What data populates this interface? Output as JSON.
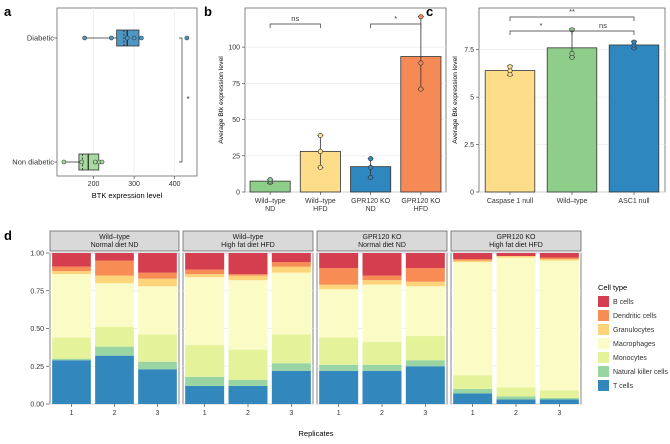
{
  "colors": {
    "diabetic_box": "#4e97c4",
    "nondiabetic_box": "#a7d9a1",
    "b_bar_wt_nd": "#8fce8a",
    "b_bar_wt_hfd": "#fddd8a",
    "b_bar_ko_nd": "#2f87c0",
    "b_bar_ko_hfd": "#f58a57",
    "c_bar_casp": "#fddd8a",
    "c_bar_wt": "#8fce8a",
    "c_bar_asc": "#2f87c0",
    "strip_bg": "#d9d9d9",
    "grid": "#ebebeb",
    "B cells": "#d53e4f",
    "Dendritic cells": "#f78c54",
    "Granulocytes": "#fed47a",
    "Macrophages": "#fbfbc5",
    "Monocytes": "#e4f29a",
    "Natural killer cells": "#99d4a3",
    "T cells": "#3288bd"
  },
  "chart_data": [
    {
      "panel": "a",
      "type": "box",
      "orientation": "horizontal",
      "categories": [
        "Diabetic",
        "Non diabetic"
      ],
      "xlabel": "BTK expression level",
      "ylabel": "",
      "xlim": [
        110,
        455
      ],
      "xticks": [
        200,
        300,
        400
      ],
      "boxes": [
        {
          "category": "Diabetic",
          "min": 178,
          "q1": 257,
          "median": 283,
          "mean": 275,
          "q3": 312,
          "max": 318,
          "outliers": [
            430
          ],
          "points": [
            178,
            244,
            283,
            300,
            318
          ]
        },
        {
          "category": "Non diabetic",
          "min": 127,
          "q1": 164,
          "median": 187,
          "mean": 173,
          "q3": 213,
          "max": 221,
          "outliers": [],
          "points": [
            127,
            171,
            204,
            214,
            221
          ]
        }
      ],
      "significance": [
        {
          "between": [
            "Diabetic",
            "Non diabetic"
          ],
          "label": "*"
        }
      ],
      "grid": true
    },
    {
      "panel": "b",
      "type": "bar",
      "categories": [
        "Wild–type\nND",
        "Wild–type\nHFD",
        "GPR120 KO\nND",
        "GPR120 KO\nHFD"
      ],
      "values": [
        7.5,
        28,
        17.5,
        93.5
      ],
      "errors": [
        {
          "low": 6,
          "high": 8.5
        },
        {
          "low": 17,
          "high": 39
        },
        {
          "low": 10,
          "high": 23
        },
        {
          "low": 71,
          "high": 121
        }
      ],
      "points": [
        [
          6.5,
          7.5,
          8.5
        ],
        [
          17,
          28,
          39
        ],
        [
          10,
          17,
          23
        ],
        [
          71,
          89,
          121
        ]
      ],
      "ylabel": "Average Btk expression level",
      "xlabel": "",
      "ylim": [
        0,
        127
      ],
      "yticks": [
        0,
        25,
        50,
        75,
        100
      ],
      "significance": [
        {
          "between": [
            0,
            1
          ],
          "label": "ns"
        },
        {
          "between": [
            2,
            3
          ],
          "label": "*"
        }
      ],
      "grid": true
    },
    {
      "panel": "c",
      "type": "bar",
      "categories": [
        "Caspase 1 null",
        "Wild–type",
        "ASC1 null"
      ],
      "values": [
        6.4,
        7.6,
        7.75
      ],
      "errors": [
        {
          "low": 6.15,
          "high": 6.65
        },
        {
          "low": 7.1,
          "high": 8.6
        },
        {
          "low": 7.55,
          "high": 7.95
        }
      ],
      "points": [
        [
          6.2,
          6.4,
          6.6
        ],
        [
          7.1,
          7.3,
          8.55
        ],
        [
          7.6,
          7.75,
          7.9
        ]
      ],
      "ylabel": "Average Btk expression level",
      "xlabel": "",
      "ylim": [
        0,
        9.7
      ],
      "yticks": [
        0,
        2.5,
        5,
        7.5
      ],
      "significance": [
        {
          "between": [
            0,
            1
          ],
          "label": "*"
        },
        {
          "between": [
            1,
            2
          ],
          "label": "ns"
        },
        {
          "between": [
            0,
            2
          ],
          "label": "**"
        }
      ],
      "grid": true
    },
    {
      "panel": "d",
      "type": "stacked-bar",
      "xlabel": "Replicates",
      "ylabel": "",
      "ylim": [
        0,
        1
      ],
      "yticks": [
        0,
        0.25,
        0.5,
        0.75,
        1.0
      ],
      "ytick_labels": [
        "0.00",
        "0.25",
        "0.50",
        "0.75",
        "1.00"
      ],
      "categories": [
        "1",
        "2",
        "3"
      ],
      "stack_order_bottom_to_top": [
        "T cells",
        "Natural killer cells",
        "Monocytes",
        "Macrophages",
        "Granulocytes",
        "Dendritic cells",
        "B cells"
      ],
      "legend": {
        "title": "Cell type",
        "items": [
          "B cells",
          "Dendritic cells",
          "Granulocytes",
          "Macrophages",
          "Monocytes",
          "Natural killer cells",
          "T cells"
        ],
        "position": "right"
      },
      "facets": [
        {
          "strip": [
            "Wild–type",
            "Normal diet ND"
          ],
          "bars": [
            {
              "T cells": 0.29,
              "Natural killer cells": 0.01,
              "Monocytes": 0.14,
              "Macrophages": 0.42,
              "Granulocytes": 0.02,
              "Dendritic cells": 0.03,
              "B cells": 0.09
            },
            {
              "T cells": 0.32,
              "Natural killer cells": 0.06,
              "Monocytes": 0.13,
              "Macrophages": 0.29,
              "Granulocytes": 0.05,
              "Dendritic cells": 0.1,
              "B cells": 0.05
            },
            {
              "T cells": 0.23,
              "Natural killer cells": 0.05,
              "Monocytes": 0.18,
              "Macrophages": 0.32,
              "Granulocytes": 0.05,
              "Dendritic cells": 0.04,
              "B cells": 0.13
            }
          ]
        },
        {
          "strip": [
            "Wild–type",
            "High fat diet HFD"
          ],
          "bars": [
            {
              "T cells": 0.12,
              "Natural killer cells": 0.06,
              "Monocytes": 0.21,
              "Macrophages": 0.45,
              "Granulocytes": 0.02,
              "Dendritic cells": 0.03,
              "B cells": 0.11
            },
            {
              "T cells": 0.12,
              "Natural killer cells": 0.04,
              "Monocytes": 0.2,
              "Macrophages": 0.46,
              "Granulocytes": 0.03,
              "Dendritic cells": 0.01,
              "B cells": 0.14
            },
            {
              "T cells": 0.22,
              "Natural killer cells": 0.05,
              "Monocytes": 0.19,
              "Macrophages": 0.41,
              "Granulocytes": 0.04,
              "Dendritic cells": 0.03,
              "B cells": 0.06
            }
          ]
        },
        {
          "strip": [
            "GPR120 KO",
            "Normal diet ND"
          ],
          "bars": [
            {
              "T cells": 0.22,
              "Natural killer cells": 0.04,
              "Monocytes": 0.18,
              "Macrophages": 0.32,
              "Granulocytes": 0.03,
              "Dendritic cells": 0.11,
              "B cells": 0.1
            },
            {
              "T cells": 0.22,
              "Natural killer cells": 0.04,
              "Monocytes": 0.15,
              "Macrophages": 0.38,
              "Granulocytes": 0.03,
              "Dendritic cells": 0.03,
              "B cells": 0.15
            },
            {
              "T cells": 0.25,
              "Natural killer cells": 0.04,
              "Monocytes": 0.16,
              "Macrophages": 0.33,
              "Granulocytes": 0.03,
              "Dendritic cells": 0.09,
              "B cells": 0.1
            }
          ]
        },
        {
          "strip": [
            "GPR120 KO",
            "High fat diet HFD"
          ],
          "bars": [
            {
              "T cells": 0.07,
              "Natural killer cells": 0.03,
              "Monocytes": 0.09,
              "Macrophages": 0.75,
              "Granulocytes": 0.01,
              "Dendritic cells": 0.01,
              "B cells": 0.04
            },
            {
              "T cells": 0.03,
              "Natural killer cells": 0.02,
              "Monocytes": 0.06,
              "Macrophages": 0.86,
              "Granulocytes": 0.01,
              "Dendritic cells": 0.0,
              "B cells": 0.02
            },
            {
              "T cells": 0.03,
              "Natural killer cells": 0.01,
              "Monocytes": 0.05,
              "Macrophages": 0.86,
              "Granulocytes": 0.01,
              "Dendritic cells": 0.01,
              "B cells": 0.03
            }
          ]
        }
      ]
    }
  ]
}
